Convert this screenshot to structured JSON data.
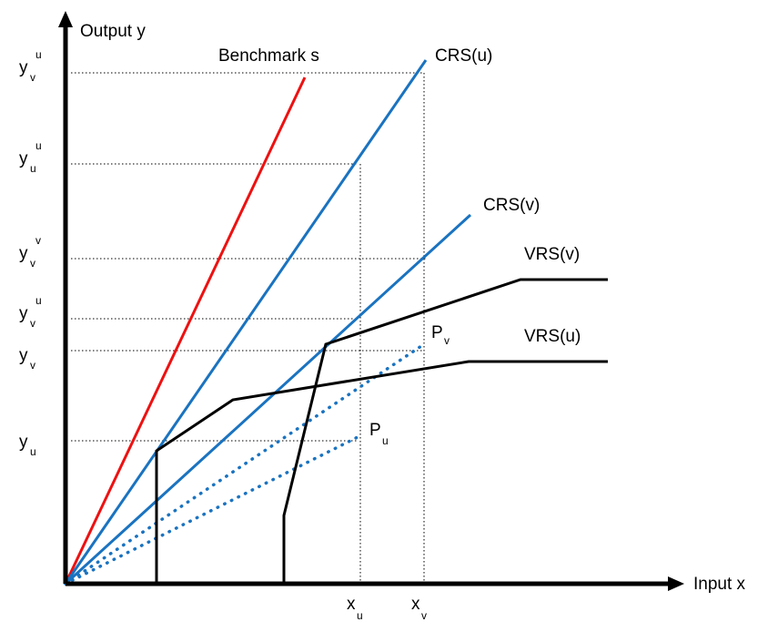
{
  "axes": {
    "y_label": "Output y",
    "x_label": "Input x"
  },
  "y_ticks": [
    {
      "base": "y",
      "sub": "v",
      "sup": "u"
    },
    {
      "base": "y",
      "sub": "u",
      "sup": "u"
    },
    {
      "base": "y",
      "sub": "v",
      "sup": "v"
    },
    {
      "base": "y",
      "sub": "v",
      "sup": "u"
    },
    {
      "base": "y",
      "sub": "v",
      "sup": ""
    },
    {
      "base": "y",
      "sub": "u",
      "sup": ""
    }
  ],
  "x_ticks": [
    {
      "base": "x",
      "sub": "u"
    },
    {
      "base": "x",
      "sub": "v"
    }
  ],
  "curves": {
    "benchmark": "Benchmark s",
    "crs_u": "CRS(u)",
    "crs_v": "CRS(v)",
    "vrs_v": "VRS(v)",
    "vrs_u": "VRS(u)"
  },
  "points": {
    "pv": {
      "base": "P",
      "sub": "v"
    },
    "pu": {
      "base": "P",
      "sub": "u"
    }
  },
  "colors": {
    "benchmark": "#ee1111",
    "crs": "#1a73c0",
    "vrs": "#000000",
    "guide": "#000000"
  }
}
